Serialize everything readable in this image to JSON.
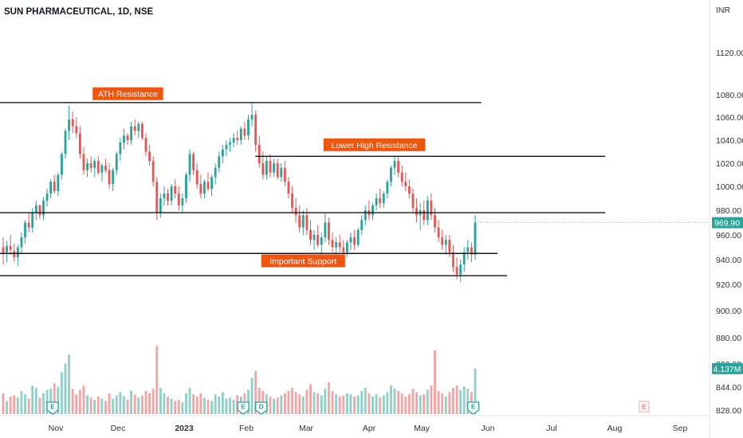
{
  "header": {
    "title": "SUN PHARMACEUTICAL, 1D, NSE"
  },
  "currency": "INR",
  "colors": {
    "up": "#26a69a",
    "down": "#ef5350",
    "vol_up": "#8fd1c7",
    "vol_down": "#f6a3a3",
    "label_bg": "#f0550f",
    "last_price_bg": "#26a69a",
    "line": "#131722",
    "axis_text": "#333333"
  },
  "chart_data": {
    "type": "candlestick",
    "title": "SUN PHARMACEUTICAL, 1D, NSE",
    "price_axis_ticks": [
      1120,
      1080,
      1060,
      1040,
      1020,
      1000,
      980,
      960,
      940,
      920,
      900,
      880,
      860,
      844,
      828
    ],
    "x_ticks": [
      "Nov",
      "Dec",
      "2023",
      "Feb",
      "Mar",
      "Apr",
      "May",
      "Jun",
      "Jul",
      "Aug",
      "Sep"
    ],
    "x_tick_months": [
      1,
      2,
      3,
      4,
      5,
      6,
      7,
      8,
      9,
      10,
      11
    ],
    "last_price": "969.90",
    "last_price_value": 969.9,
    "last_volume": "4.137M",
    "horizontal_lines": [
      {
        "price": 1073,
        "from_month": -0.2,
        "to_month": 7.9
      },
      {
        "price": 1026,
        "from_month": 4.15,
        "to_month": 9.85
      },
      {
        "price": 978,
        "from_month": -0.2,
        "to_month": 9.85
      },
      {
        "price": 945,
        "from_month": -0.2,
        "to_month": 8.15
      },
      {
        "price": 927,
        "from_month": -0.2,
        "to_month": 8.3
      }
    ],
    "annotations": [
      {
        "text": "ATH Resistance",
        "price": 1081,
        "month": 2.15
      },
      {
        "text": "Lower High Resistance",
        "price": 1036,
        "month": 6.1
      },
      {
        "text": "Important Support",
        "price": 939,
        "month": 4.95
      }
    ],
    "event_markers": [
      {
        "label": "E",
        "month": 0.95
      },
      {
        "label": "E",
        "month": 3.95
      },
      {
        "label": "D",
        "month": 4.25
      },
      {
        "label": "E",
        "month": 7.78
      }
    ],
    "future_event_marker": {
      "label": "E",
      "month": 10.45
    },
    "candles": [
      [
        950,
        958,
        936,
        945,
        1.9
      ],
      [
        946,
        955,
        938,
        951,
        1.2
      ],
      [
        951,
        960,
        944,
        948,
        1.6
      ],
      [
        947,
        953,
        938,
        942,
        1.7
      ],
      [
        942,
        952,
        935,
        950,
        1.5
      ],
      [
        950,
        962,
        945,
        958,
        2.1
      ],
      [
        958,
        972,
        953,
        970,
        1.8
      ],
      [
        970,
        978,
        962,
        966,
        1.4
      ],
      [
        966,
        982,
        962,
        978,
        2.6
      ],
      [
        978,
        988,
        972,
        984,
        2.4
      ],
      [
        984,
        985,
        973,
        976,
        1.5
      ],
      [
        976,
        991,
        972,
        988,
        1.9
      ],
      [
        988,
        998,
        983,
        994,
        2.2
      ],
      [
        994,
        1006,
        990,
        1004,
        2.3
      ],
      [
        1004,
        1010,
        994,
        996,
        2.8
      ],
      [
        996,
        1012,
        992,
        1010,
        2.5
      ],
      [
        1010,
        1030,
        1006,
        1028,
        3.8
      ],
      [
        1028,
        1050,
        1024,
        1048,
        4.6
      ],
      [
        1048,
        1070,
        1040,
        1058,
        5.4
      ],
      [
        1058,
        1065,
        1046,
        1052,
        2.3
      ],
      [
        1052,
        1060,
        1042,
        1046,
        1.8
      ],
      [
        1046,
        1052,
        1024,
        1028,
        2.2
      ],
      [
        1028,
        1034,
        1010,
        1014,
        2.6
      ],
      [
        1014,
        1024,
        1008,
        1020,
        1.7
      ],
      [
        1020,
        1026,
        1012,
        1016,
        1.5
      ],
      [
        1016,
        1024,
        1008,
        1022,
        1.3
      ],
      [
        1022,
        1026,
        1010,
        1012,
        1.6
      ],
      [
        1012,
        1020,
        1004,
        1018,
        1.4
      ],
      [
        1018,
        1024,
        1012,
        1014,
        1.2
      ],
      [
        1014,
        1020,
        998,
        1002,
        1.9
      ],
      [
        1002,
        1016,
        996,
        1014,
        1.4
      ],
      [
        1014,
        1030,
        1010,
        1028,
        1.7
      ],
      [
        1028,
        1042,
        1022,
        1038,
        2.0
      ],
      [
        1038,
        1050,
        1032,
        1044,
        1.6
      ],
      [
        1044,
        1046,
        1036,
        1040,
        1.3
      ],
      [
        1040,
        1056,
        1036,
        1052,
        2.1
      ],
      [
        1052,
        1058,
        1044,
        1048,
        1.8
      ],
      [
        1048,
        1056,
        1042,
        1054,
        1.5
      ],
      [
        1054,
        1056,
        1040,
        1042,
        1.7
      ],
      [
        1042,
        1046,
        1026,
        1030,
        2.1
      ],
      [
        1030,
        1036,
        1018,
        1022,
        1.9
      ],
      [
        1022,
        1026,
        1000,
        1004,
        2.3
      ],
      [
        1004,
        1008,
        972,
        978,
        6.2
      ],
      [
        978,
        994,
        974,
        990,
        2.4
      ],
      [
        990,
        1000,
        984,
        994,
        1.9
      ],
      [
        994,
        998,
        984,
        988,
        1.6
      ],
      [
        988,
        1002,
        984,
        1000,
        1.4
      ],
      [
        1000,
        1006,
        990,
        994,
        1.2
      ],
      [
        994,
        1000,
        980,
        984,
        1.3
      ],
      [
        984,
        994,
        978,
        990,
        1.1
      ],
      [
        990,
        1012,
        986,
        1010,
        1.9
      ],
      [
        1010,
        1032,
        1004,
        1028,
        2.4
      ],
      [
        1028,
        1030,
        1010,
        1014,
        1.8
      ],
      [
        1014,
        1020,
        998,
        1002,
        1.6
      ],
      [
        1002,
        1010,
        990,
        994,
        1.9
      ],
      [
        994,
        1006,
        990,
        1004,
        1.5
      ],
      [
        1004,
        1012,
        996,
        998,
        1.3
      ],
      [
        998,
        1010,
        992,
        1008,
        1.2
      ],
      [
        1008,
        1020,
        1002,
        1016,
        1.8
      ],
      [
        1016,
        1030,
        1012,
        1026,
        1.6
      ],
      [
        1026,
        1036,
        1020,
        1032,
        2.0
      ],
      [
        1032,
        1040,
        1026,
        1036,
        1.4
      ],
      [
        1036,
        1042,
        1030,
        1038,
        1.5
      ],
      [
        1038,
        1046,
        1034,
        1042,
        1.3
      ],
      [
        1042,
        1048,
        1036,
        1040,
        1.7
      ],
      [
        1040,
        1052,
        1036,
        1050,
        1.6
      ],
      [
        1050,
        1056,
        1040,
        1044,
        1.9
      ],
      [
        1044,
        1062,
        1040,
        1058,
        2.2
      ],
      [
        1058,
        1072,
        1052,
        1062,
        3.3
      ],
      [
        1062,
        1066,
        1030,
        1036,
        3.9
      ],
      [
        1036,
        1044,
        1016,
        1020,
        2.4
      ],
      [
        1020,
        1030,
        1006,
        1010,
        2.1
      ],
      [
        1010,
        1026,
        1006,
        1022,
        1.8
      ],
      [
        1022,
        1028,
        1008,
        1012,
        1.6
      ],
      [
        1012,
        1024,
        1008,
        1020,
        1.4
      ],
      [
        1020,
        1024,
        1006,
        1008,
        1.5
      ],
      [
        1008,
        1020,
        1004,
        1016,
        1.7
      ],
      [
        1016,
        1022,
        1000,
        1004,
        1.9
      ],
      [
        1004,
        1008,
        990,
        994,
        2.1
      ],
      [
        994,
        1000,
        978,
        982,
        2.4
      ],
      [
        982,
        990,
        970,
        976,
        2.0
      ],
      [
        976,
        984,
        962,
        966,
        1.8
      ],
      [
        966,
        980,
        960,
        976,
        1.6
      ],
      [
        976,
        982,
        960,
        964,
        2.2
      ],
      [
        964,
        972,
        952,
        956,
        2.7
      ],
      [
        956,
        964,
        948,
        960,
        2.0
      ],
      [
        960,
        968,
        950,
        952,
        1.9
      ],
      [
        952,
        962,
        944,
        958,
        1.7
      ],
      [
        958,
        978,
        954,
        970,
        2.3
      ],
      [
        970,
        974,
        952,
        956,
        2.9
      ],
      [
        956,
        962,
        946,
        950,
        2.1
      ],
      [
        950,
        958,
        944,
        954,
        1.8
      ],
      [
        954,
        960,
        946,
        950,
        1.6
      ],
      [
        950,
        956,
        944,
        946,
        1.7
      ],
      [
        946,
        956,
        942,
        954,
        1.9
      ],
      [
        954,
        962,
        948,
        958,
        1.8
      ],
      [
        958,
        964,
        948,
        952,
        1.6
      ],
      [
        952,
        966,
        950,
        964,
        1.7
      ],
      [
        964,
        976,
        960,
        972,
        2.1
      ],
      [
        972,
        984,
        968,
        980,
        2.4
      ],
      [
        980,
        988,
        972,
        976,
        1.9
      ],
      [
        976,
        986,
        972,
        984,
        1.6
      ],
      [
        984,
        994,
        980,
        990,
        1.8
      ],
      [
        990,
        998,
        982,
        986,
        1.5
      ],
      [
        986,
        996,
        982,
        994,
        1.7
      ],
      [
        994,
        1006,
        990,
        1004,
        2.0
      ],
      [
        1004,
        1018,
        1000,
        1016,
        2.6
      ],
      [
        1016,
        1026,
        1010,
        1022,
        2.3
      ],
      [
        1022,
        1026,
        1008,
        1012,
        2.1
      ],
      [
        1012,
        1018,
        1000,
        1004,
        1.9
      ],
      [
        1004,
        1012,
        996,
        1000,
        1.6
      ],
      [
        1000,
        1006,
        990,
        994,
        1.8
      ],
      [
        994,
        998,
        978,
        982,
        2.3
      ],
      [
        982,
        990,
        970,
        976,
        2.0
      ],
      [
        976,
        986,
        964,
        980,
        1.7
      ],
      [
        980,
        988,
        968,
        972,
        1.8
      ],
      [
        972,
        992,
        968,
        988,
        2.2
      ],
      [
        988,
        994,
        972,
        976,
        2.6
      ],
      [
        976,
        982,
        962,
        966,
        5.8
      ],
      [
        966,
        972,
        954,
        958,
        2.1
      ],
      [
        958,
        964,
        948,
        952,
        1.9
      ],
      [
        952,
        960,
        944,
        956,
        1.6
      ],
      [
        956,
        960,
        942,
        946,
        2.0
      ],
      [
        946,
        952,
        930,
        934,
        2.4
      ],
      [
        934,
        942,
        924,
        928,
        2.6
      ],
      [
        928,
        940,
        922,
        936,
        2.2
      ],
      [
        936,
        950,
        930,
        946,
        2.5
      ],
      [
        946,
        956,
        940,
        950,
        2.3
      ],
      [
        950,
        954,
        938,
        944,
        2.0
      ],
      [
        944,
        976,
        940,
        970,
        4.137
      ]
    ]
  }
}
